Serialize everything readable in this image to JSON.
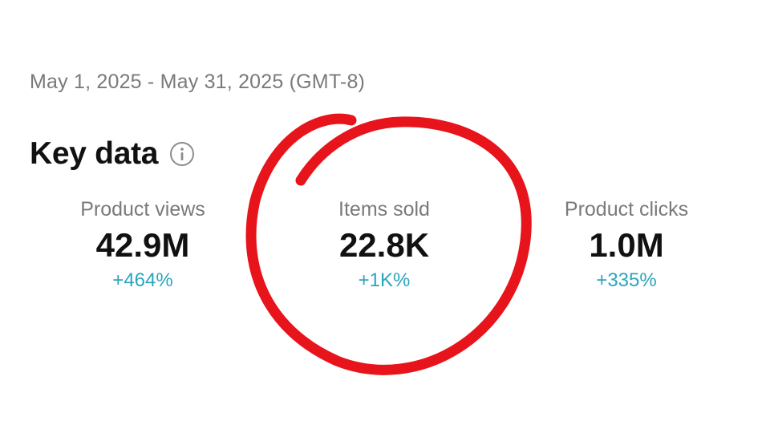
{
  "date_range": "May 1, 2025 - May 31, 2025 (GMT-8)",
  "key_data": {
    "title": "Key data",
    "info_icon": "info-icon"
  },
  "metrics": [
    {
      "label": "Product views",
      "value": "42.9M",
      "change": "+464%"
    },
    {
      "label": "Items sold",
      "value": "22.8K",
      "change": "+1K%"
    },
    {
      "label": "Product clicks",
      "value": "1.0M",
      "change": "+335%"
    }
  ],
  "colors": {
    "positive_change": "#2aa5be",
    "annotation": "#e8141b",
    "title": "#111111",
    "muted_text": "#7a7a7a"
  }
}
